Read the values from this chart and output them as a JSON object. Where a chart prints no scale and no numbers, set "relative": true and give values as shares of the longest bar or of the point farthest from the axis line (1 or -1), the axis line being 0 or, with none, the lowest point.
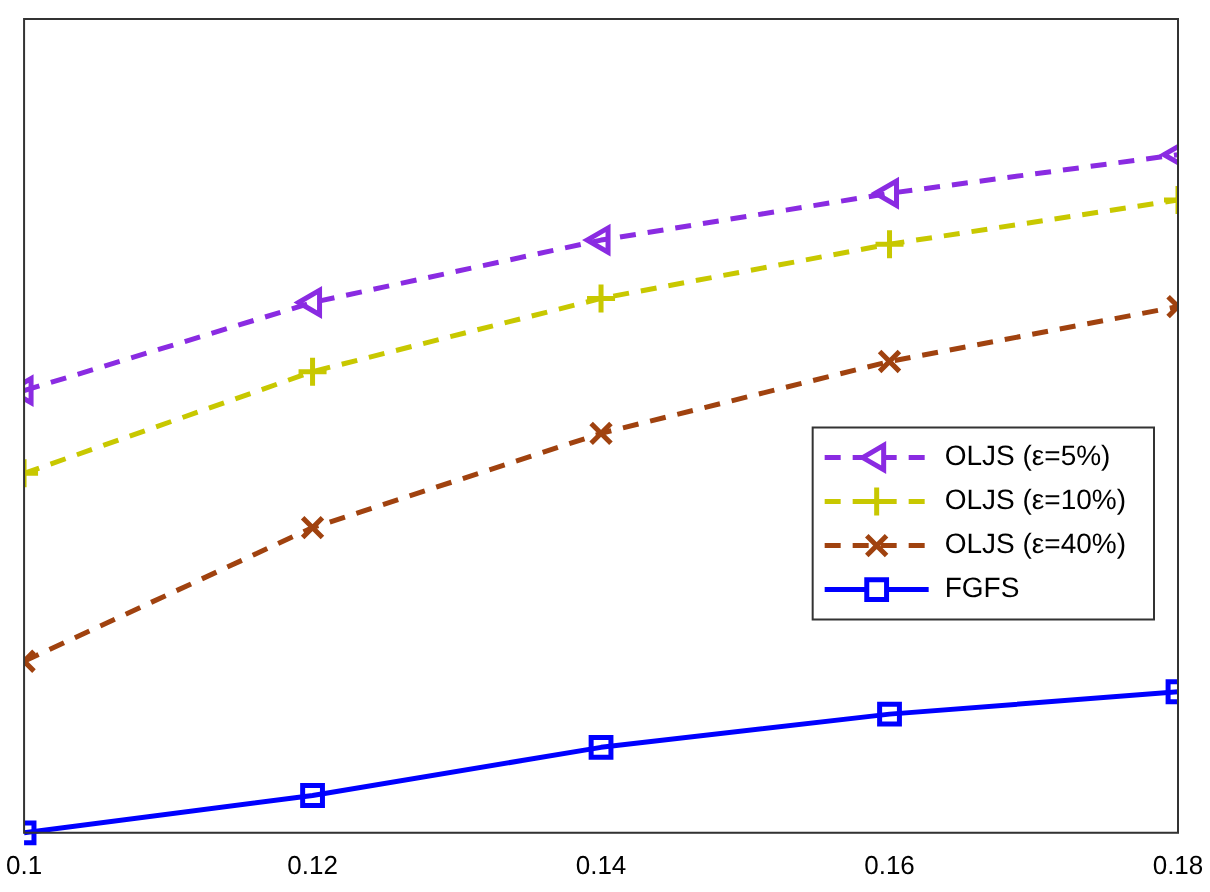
{
  "chart_data": {
    "type": "line",
    "x": [
      0.1,
      0.12,
      0.14,
      0.16,
      0.18
    ],
    "xlim": [
      0.1,
      0.18
    ],
    "xticks": [
      0.1,
      0.12,
      0.14,
      0.16,
      0.18
    ],
    "relative": true,
    "grid": false,
    "legend": "right",
    "series": [
      {
        "name": "OLJS (ε=5%)",
        "color": "#8a2be2",
        "marker": "triangle",
        "line_style": "dashed",
        "values": [
          0.652,
          0.782,
          0.874,
          0.943,
          1
        ]
      },
      {
        "name": "OLJS (ε=10%)",
        "color": "#c8c800",
        "marker": "plus",
        "line_style": "dashed",
        "values": [
          0.53,
          0.68,
          0.788,
          0.868,
          0.933
        ]
      },
      {
        "name": "OLJS (ε=40%)",
        "color": "#a0420f",
        "marker": "cross",
        "line_style": "dashed",
        "values": [
          0.253,
          0.45,
          0.589,
          0.695,
          0.776
        ]
      },
      {
        "name": "FGFS",
        "color": "#0000ff",
        "marker": "square",
        "line_style": "solid",
        "values": [
          0,
          0.055,
          0.126,
          0.175,
          0.208
        ]
      }
    ]
  }
}
